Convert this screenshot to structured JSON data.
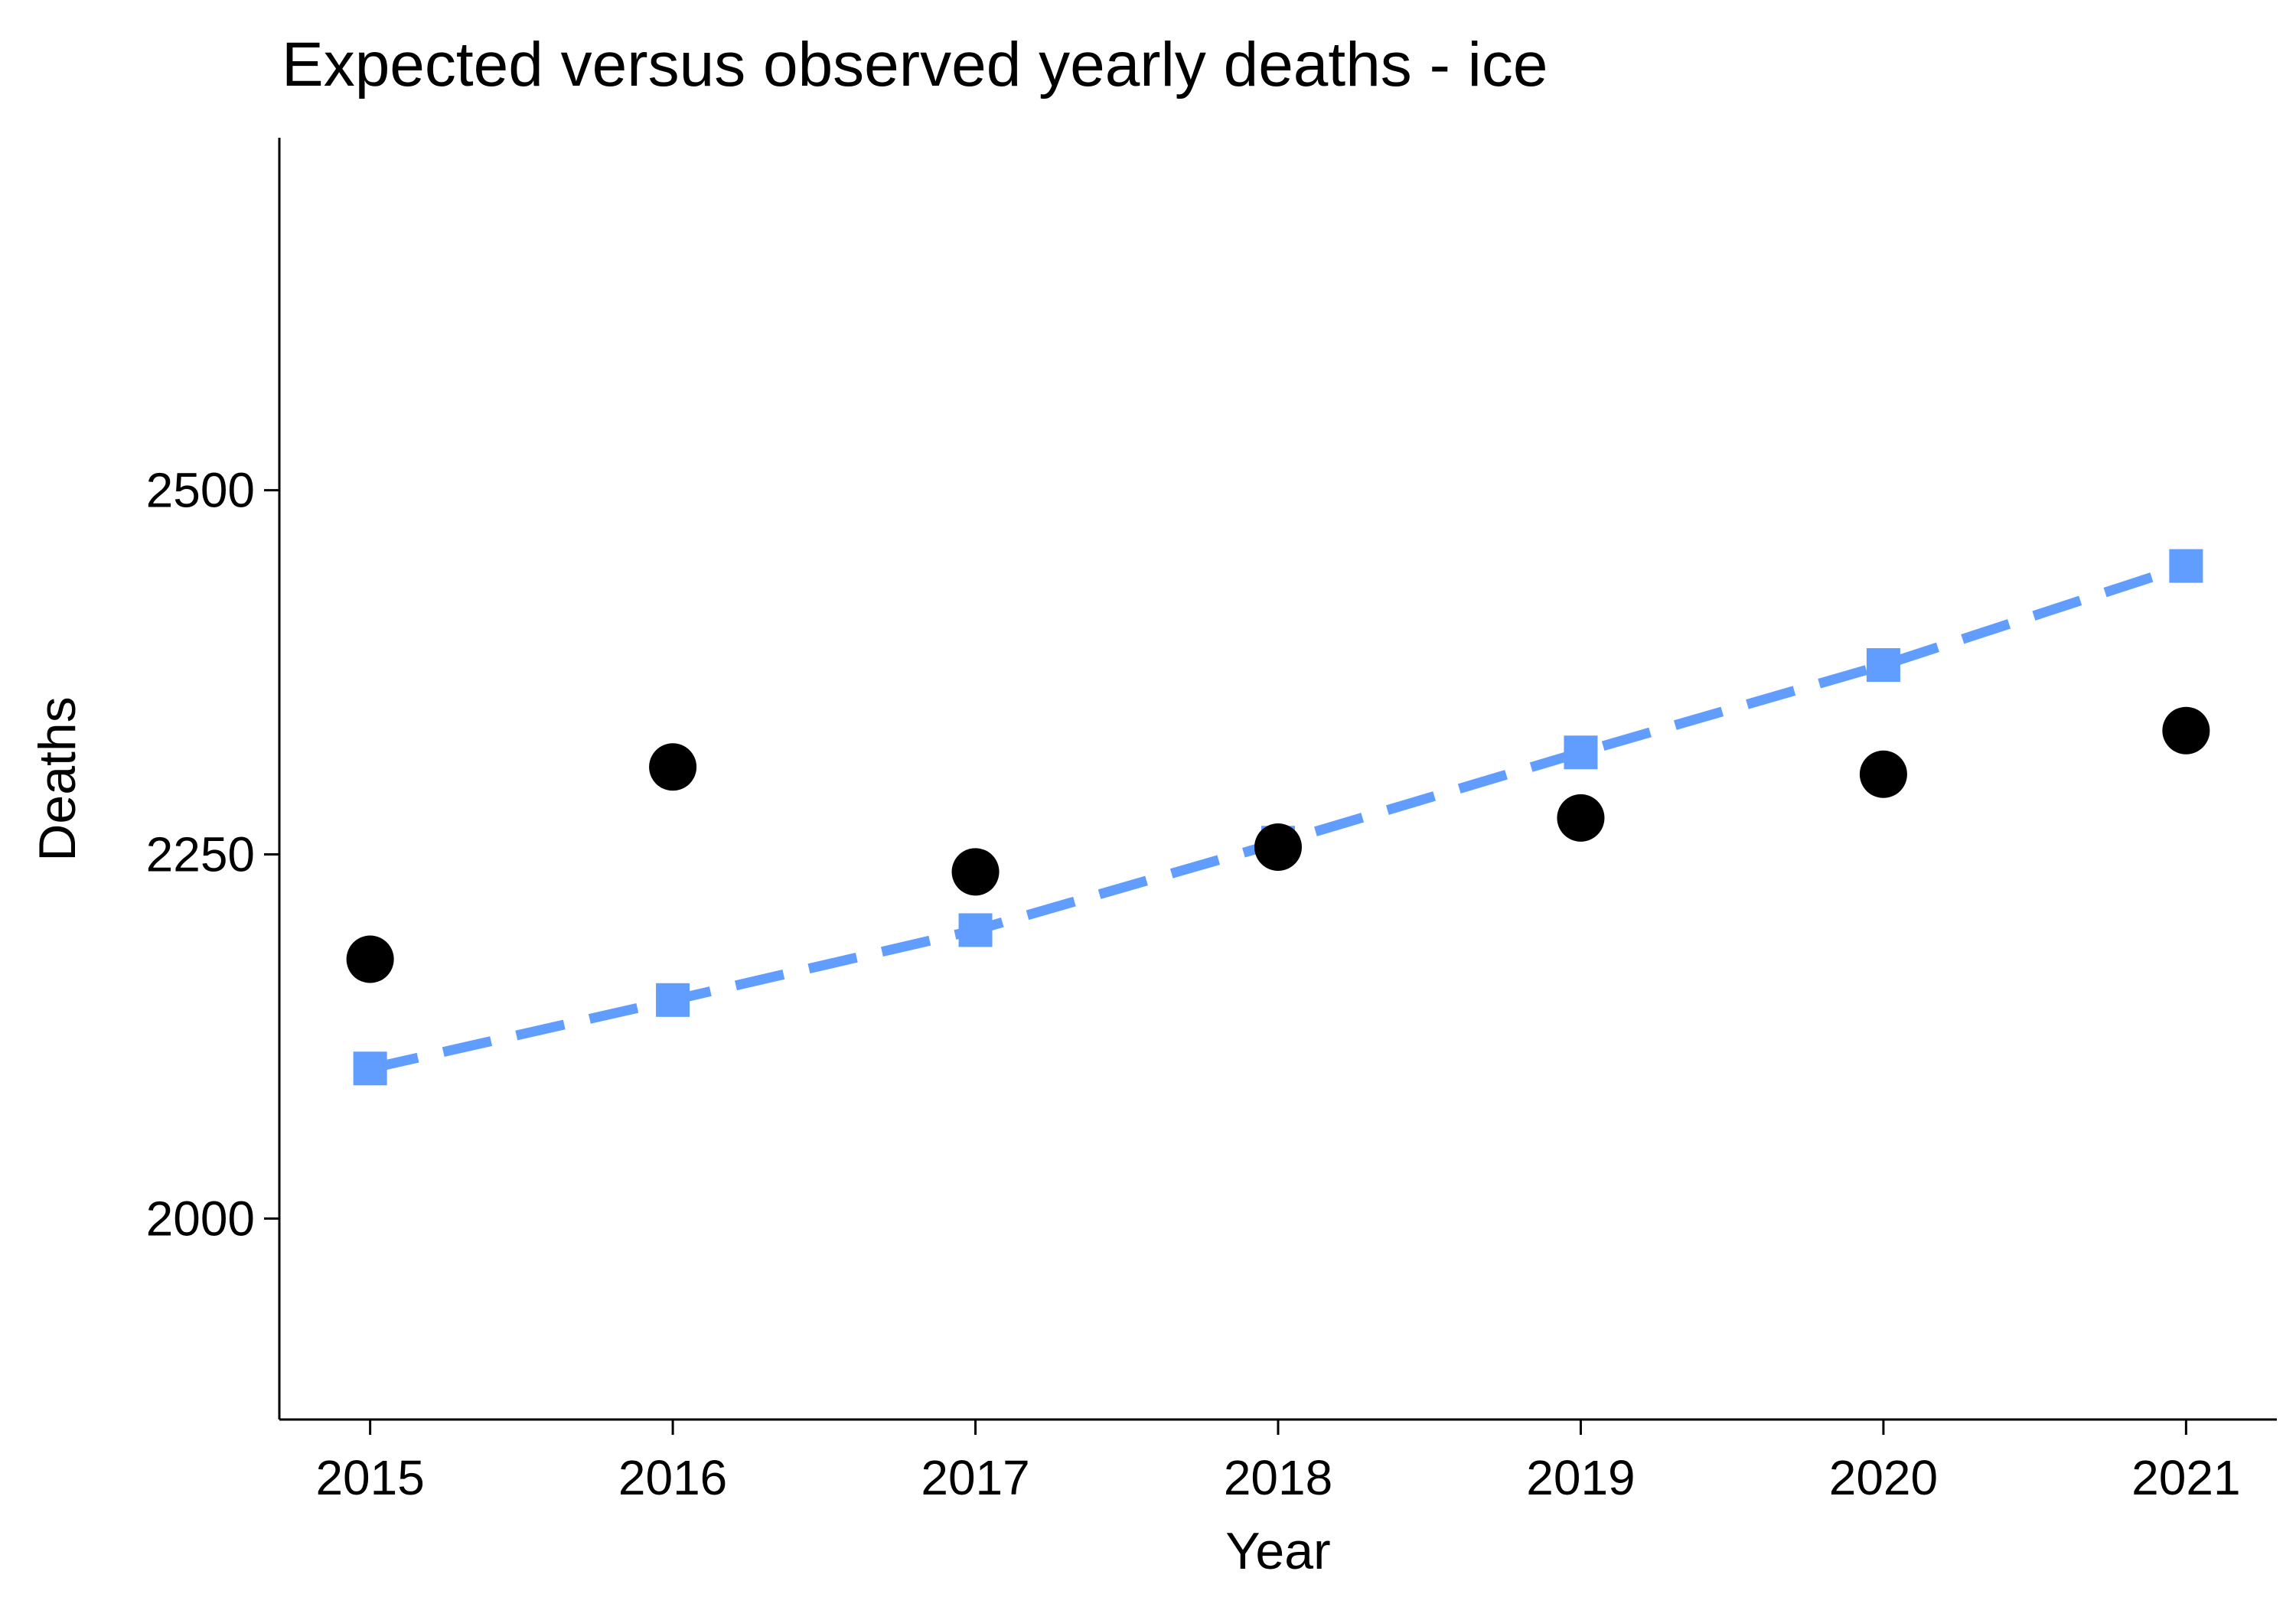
{
  "chart_data": {
    "type": "scatter",
    "title": "Expected versus observed yearly deaths - ice",
    "xlabel": "Year",
    "ylabel": "Deaths",
    "x": [
      2015,
      2016,
      2017,
      2018,
      2019,
      2020,
      2021
    ],
    "xticks": [
      "2015",
      "2016",
      "2017",
      "2018",
      "2019",
      "2020",
      "2021"
    ],
    "yticks": [
      "2000",
      "2250",
      "2500"
    ],
    "xlim": [
      2014.7,
      2021.3
    ],
    "ylim": [
      1862,
      2742
    ],
    "grid": false,
    "legend": "none",
    "series": [
      {
        "kind": "expected",
        "style": "dashed-line-with-square-markers",
        "color": "#619CFF",
        "values": [
          2103,
          2150,
          2198,
          2258,
          2320,
          2380,
          2448
        ]
      },
      {
        "kind": "observed",
        "style": "circle-markers",
        "color": "#000000",
        "values": [
          2178,
          2310,
          2238,
          2255,
          2275,
          2305,
          2335
        ]
      }
    ]
  }
}
